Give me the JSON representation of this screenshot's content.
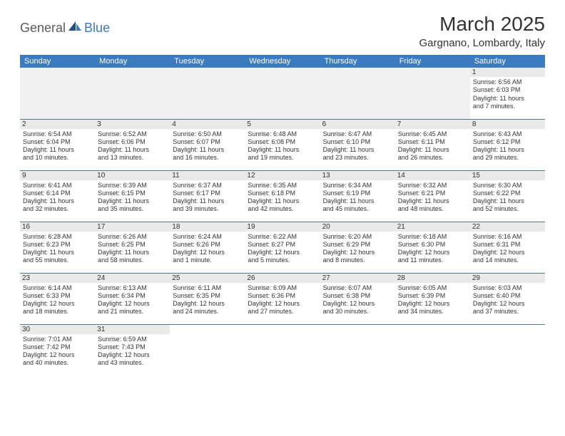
{
  "logo": {
    "text1": "General",
    "text2": "Blue"
  },
  "title": "March 2025",
  "subtitle": "Gargnano, Lombardy, Italy",
  "colors": {
    "header_bg": "#3b7bbf",
    "header_fg": "#ffffff",
    "daynum_bg": "#eaeaea",
    "border": "#3b7bbf",
    "blank_bg": "#f1f1f1",
    "text": "#333333"
  },
  "day_headers": [
    "Sunday",
    "Monday",
    "Tuesday",
    "Wednesday",
    "Thursday",
    "Friday",
    "Saturday"
  ],
  "weeks": [
    [
      null,
      null,
      null,
      null,
      null,
      null,
      {
        "n": "1",
        "sr": "Sunrise: 6:56 AM",
        "ss": "Sunset: 6:03 PM",
        "d1": "Daylight: 11 hours",
        "d2": "and 7 minutes."
      }
    ],
    [
      {
        "n": "2",
        "sr": "Sunrise: 6:54 AM",
        "ss": "Sunset: 6:04 PM",
        "d1": "Daylight: 11 hours",
        "d2": "and 10 minutes."
      },
      {
        "n": "3",
        "sr": "Sunrise: 6:52 AM",
        "ss": "Sunset: 6:06 PM",
        "d1": "Daylight: 11 hours",
        "d2": "and 13 minutes."
      },
      {
        "n": "4",
        "sr": "Sunrise: 6:50 AM",
        "ss": "Sunset: 6:07 PM",
        "d1": "Daylight: 11 hours",
        "d2": "and 16 minutes."
      },
      {
        "n": "5",
        "sr": "Sunrise: 6:48 AM",
        "ss": "Sunset: 6:08 PM",
        "d1": "Daylight: 11 hours",
        "d2": "and 19 minutes."
      },
      {
        "n": "6",
        "sr": "Sunrise: 6:47 AM",
        "ss": "Sunset: 6:10 PM",
        "d1": "Daylight: 11 hours",
        "d2": "and 23 minutes."
      },
      {
        "n": "7",
        "sr": "Sunrise: 6:45 AM",
        "ss": "Sunset: 6:11 PM",
        "d1": "Daylight: 11 hours",
        "d2": "and 26 minutes."
      },
      {
        "n": "8",
        "sr": "Sunrise: 6:43 AM",
        "ss": "Sunset: 6:12 PM",
        "d1": "Daylight: 11 hours",
        "d2": "and 29 minutes."
      }
    ],
    [
      {
        "n": "9",
        "sr": "Sunrise: 6:41 AM",
        "ss": "Sunset: 6:14 PM",
        "d1": "Daylight: 11 hours",
        "d2": "and 32 minutes."
      },
      {
        "n": "10",
        "sr": "Sunrise: 6:39 AM",
        "ss": "Sunset: 6:15 PM",
        "d1": "Daylight: 11 hours",
        "d2": "and 35 minutes."
      },
      {
        "n": "11",
        "sr": "Sunrise: 6:37 AM",
        "ss": "Sunset: 6:17 PM",
        "d1": "Daylight: 11 hours",
        "d2": "and 39 minutes."
      },
      {
        "n": "12",
        "sr": "Sunrise: 6:35 AM",
        "ss": "Sunset: 6:18 PM",
        "d1": "Daylight: 11 hours",
        "d2": "and 42 minutes."
      },
      {
        "n": "13",
        "sr": "Sunrise: 6:34 AM",
        "ss": "Sunset: 6:19 PM",
        "d1": "Daylight: 11 hours",
        "d2": "and 45 minutes."
      },
      {
        "n": "14",
        "sr": "Sunrise: 6:32 AM",
        "ss": "Sunset: 6:21 PM",
        "d1": "Daylight: 11 hours",
        "d2": "and 48 minutes."
      },
      {
        "n": "15",
        "sr": "Sunrise: 6:30 AM",
        "ss": "Sunset: 6:22 PM",
        "d1": "Daylight: 11 hours",
        "d2": "and 52 minutes."
      }
    ],
    [
      {
        "n": "16",
        "sr": "Sunrise: 6:28 AM",
        "ss": "Sunset: 6:23 PM",
        "d1": "Daylight: 11 hours",
        "d2": "and 55 minutes."
      },
      {
        "n": "17",
        "sr": "Sunrise: 6:26 AM",
        "ss": "Sunset: 6:25 PM",
        "d1": "Daylight: 11 hours",
        "d2": "and 58 minutes."
      },
      {
        "n": "18",
        "sr": "Sunrise: 6:24 AM",
        "ss": "Sunset: 6:26 PM",
        "d1": "Daylight: 12 hours",
        "d2": "and 1 minute."
      },
      {
        "n": "19",
        "sr": "Sunrise: 6:22 AM",
        "ss": "Sunset: 6:27 PM",
        "d1": "Daylight: 12 hours",
        "d2": "and 5 minutes."
      },
      {
        "n": "20",
        "sr": "Sunrise: 6:20 AM",
        "ss": "Sunset: 6:29 PM",
        "d1": "Daylight: 12 hours",
        "d2": "and 8 minutes."
      },
      {
        "n": "21",
        "sr": "Sunrise: 6:18 AM",
        "ss": "Sunset: 6:30 PM",
        "d1": "Daylight: 12 hours",
        "d2": "and 11 minutes."
      },
      {
        "n": "22",
        "sr": "Sunrise: 6:16 AM",
        "ss": "Sunset: 6:31 PM",
        "d1": "Daylight: 12 hours",
        "d2": "and 14 minutes."
      }
    ],
    [
      {
        "n": "23",
        "sr": "Sunrise: 6:14 AM",
        "ss": "Sunset: 6:33 PM",
        "d1": "Daylight: 12 hours",
        "d2": "and 18 minutes."
      },
      {
        "n": "24",
        "sr": "Sunrise: 6:13 AM",
        "ss": "Sunset: 6:34 PM",
        "d1": "Daylight: 12 hours",
        "d2": "and 21 minutes."
      },
      {
        "n": "25",
        "sr": "Sunrise: 6:11 AM",
        "ss": "Sunset: 6:35 PM",
        "d1": "Daylight: 12 hours",
        "d2": "and 24 minutes."
      },
      {
        "n": "26",
        "sr": "Sunrise: 6:09 AM",
        "ss": "Sunset: 6:36 PM",
        "d1": "Daylight: 12 hours",
        "d2": "and 27 minutes."
      },
      {
        "n": "27",
        "sr": "Sunrise: 6:07 AM",
        "ss": "Sunset: 6:38 PM",
        "d1": "Daylight: 12 hours",
        "d2": "and 30 minutes."
      },
      {
        "n": "28",
        "sr": "Sunrise: 6:05 AM",
        "ss": "Sunset: 6:39 PM",
        "d1": "Daylight: 12 hours",
        "d2": "and 34 minutes."
      },
      {
        "n": "29",
        "sr": "Sunrise: 6:03 AM",
        "ss": "Sunset: 6:40 PM",
        "d1": "Daylight: 12 hours",
        "d2": "and 37 minutes."
      }
    ],
    [
      {
        "n": "30",
        "sr": "Sunrise: 7:01 AM",
        "ss": "Sunset: 7:42 PM",
        "d1": "Daylight: 12 hours",
        "d2": "and 40 minutes."
      },
      {
        "n": "31",
        "sr": "Sunrise: 6:59 AM",
        "ss": "Sunset: 7:43 PM",
        "d1": "Daylight: 12 hours",
        "d2": "and 43 minutes."
      },
      null,
      null,
      null,
      null,
      null
    ]
  ]
}
